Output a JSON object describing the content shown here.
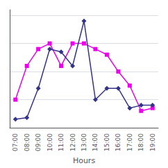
{
  "chart_data": {
    "type": "line",
    "xlabel": "Hours",
    "categories": [
      "07:00",
      "08:00",
      "09:00",
      "10:00",
      "11:00",
      "12:00",
      "13:00",
      "14:00",
      "15:00",
      "16:00",
      "17:00",
      "18:00",
      "19:00"
    ],
    "series": [
      {
        "color": "#333388",
        "marker": "diamond",
        "values": [
          1.5,
          1.8,
          7,
          14,
          13.5,
          11,
          19,
          5,
          7,
          7,
          3.5,
          4,
          4
        ]
      },
      {
        "color": "#ee00ee",
        "marker": "square",
        "values": [
          5,
          11,
          14,
          15,
          11,
          15,
          15,
          14,
          13,
          10,
          7.5,
          3,
          3.5
        ]
      }
    ],
    "ylim": [
      0,
      21
    ],
    "yticks": [
      0,
      5,
      10,
      15,
      20
    ],
    "grid": true,
    "tick_labels": "x"
  }
}
